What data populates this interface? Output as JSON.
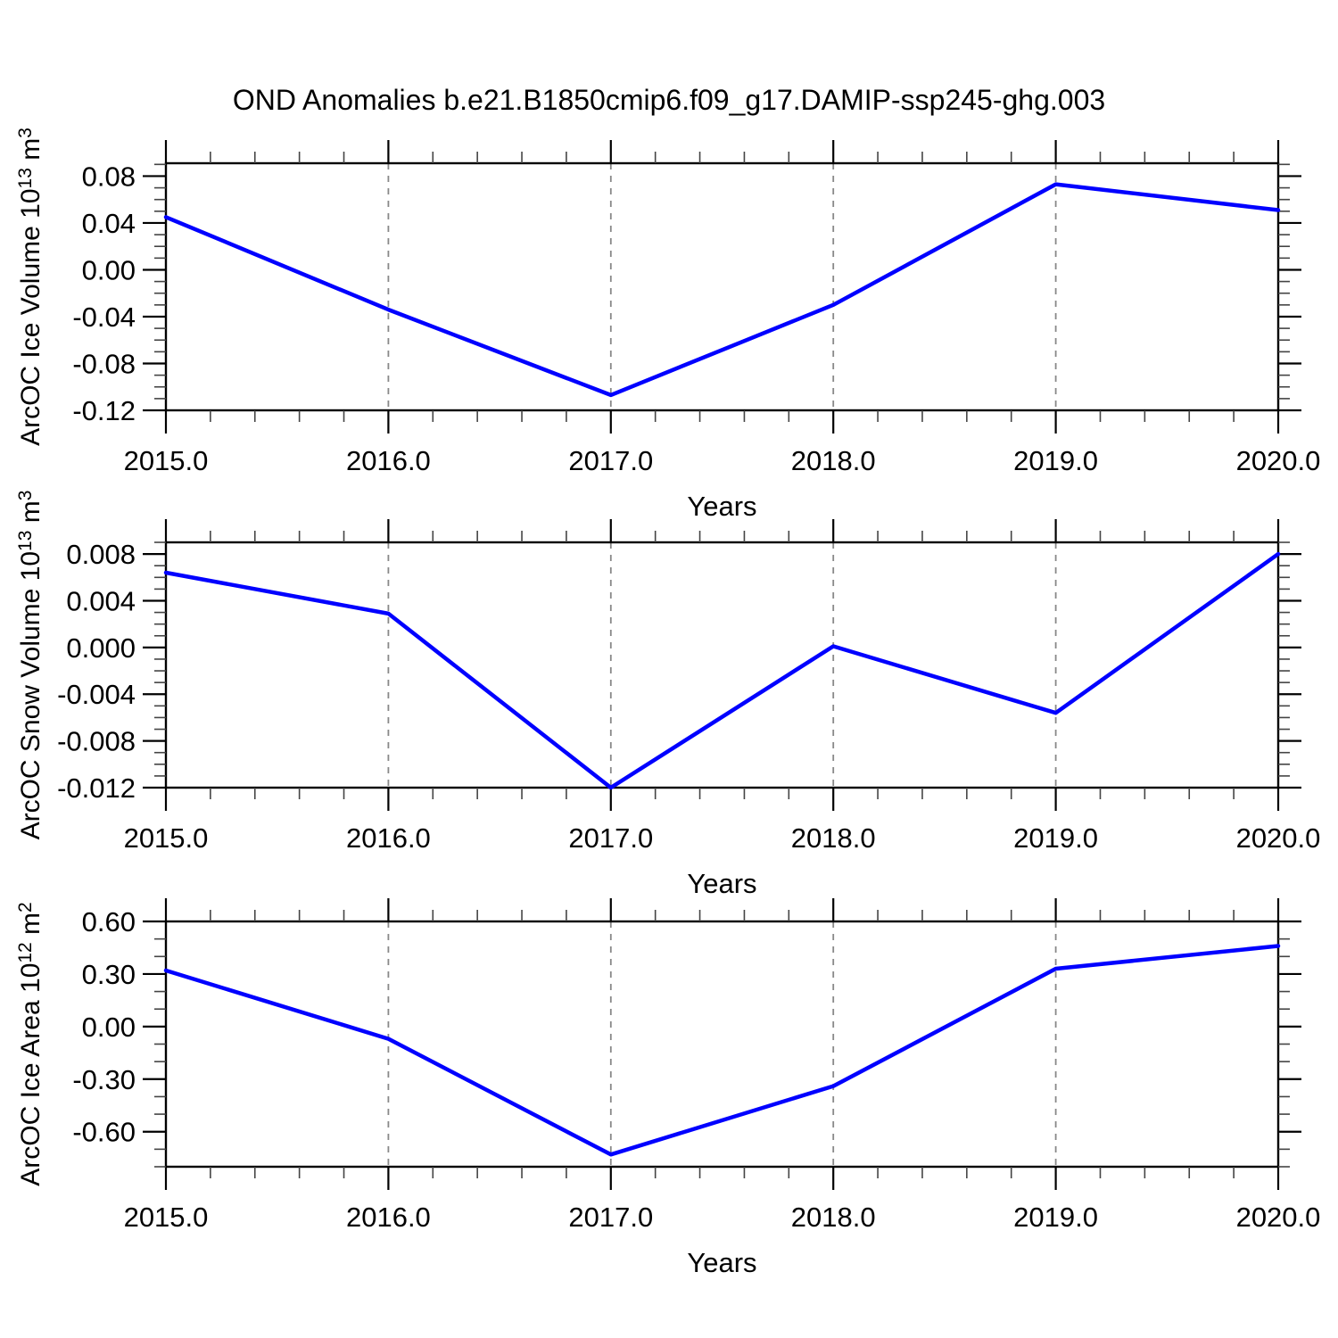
{
  "title": "OND Anomalies b.e21.B1850cmip6.f09_g17.DAMIP-ssp245-ghg.003",
  "colors": {
    "line": "#0000ff",
    "axis": "#000000",
    "minor_tick": "#444444",
    "grid": "#888888",
    "background": "#ffffff",
    "text": "#000000"
  },
  "x_axis": {
    "label": "Years",
    "range": [
      2015,
      2020
    ],
    "tick_values": [
      2015,
      2016,
      2017,
      2018,
      2019,
      2020
    ],
    "tick_labels": [
      "2015.0",
      "2016.0",
      "2017.0",
      "2018.0",
      "2019.0",
      "2020.0"
    ],
    "minor_step": 0.2,
    "grid_values": [
      2016,
      2017,
      2018,
      2019
    ]
  },
  "chart_data": [
    {
      "id": "ice-volume",
      "type": "line",
      "ylabel": "ArcOC Ice Volume 10^13 m^3",
      "ylabel_parts": [
        {
          "text": "ArcOC Ice Volume 10"
        },
        {
          "text": "13",
          "super": true
        },
        {
          "text": " m"
        },
        {
          "text": "3",
          "super": true
        }
      ],
      "x": [
        2015,
        2016,
        2017,
        2018,
        2019,
        2020
      ],
      "values": [
        0.045,
        -0.034,
        -0.107,
        -0.03,
        0.073,
        0.051
      ],
      "ylim": [
        -0.12,
        0.091
      ],
      "ytick_values": [
        0.08,
        0.04,
        0.0,
        -0.04,
        -0.08,
        -0.12
      ],
      "ytick_labels": [
        "0.08",
        "0.04",
        "0.00",
        "-0.04",
        "-0.08",
        "-0.12"
      ],
      "y_minor_step": 0.01
    },
    {
      "id": "snow-volume",
      "type": "line",
      "ylabel": "ArcOC Snow Volume 10^13 m^3",
      "ylabel_parts": [
        {
          "text": "ArcOC Snow Volume 10"
        },
        {
          "text": "13",
          "super": true
        },
        {
          "text": " m"
        },
        {
          "text": "3",
          "super": true
        }
      ],
      "x": [
        2015,
        2016,
        2017,
        2018,
        2019,
        2020
      ],
      "values": [
        0.0064,
        0.0029,
        -0.012,
        0.0001,
        -0.0056,
        0.008
      ],
      "ylim": [
        -0.012,
        0.009
      ],
      "ytick_values": [
        0.008,
        0.004,
        0.0,
        -0.004,
        -0.008,
        -0.012
      ],
      "ytick_labels": [
        "0.008",
        "0.004",
        "0.000",
        "-0.004",
        "-0.008",
        "-0.012"
      ],
      "y_minor_step": 0.001
    },
    {
      "id": "ice-area",
      "type": "line",
      "ylabel": "ArcOC Ice Area 10^12 m^2",
      "ylabel_parts": [
        {
          "text": "ArcOC Ice Area 10"
        },
        {
          "text": "12",
          "super": true
        },
        {
          "text": " m"
        },
        {
          "text": "2",
          "super": true
        }
      ],
      "x": [
        2015,
        2016,
        2017,
        2018,
        2019,
        2020
      ],
      "values": [
        0.32,
        -0.07,
        -0.73,
        -0.34,
        0.33,
        0.46
      ],
      "ylim": [
        -0.8,
        0.6
      ],
      "ytick_values": [
        0.6,
        0.3,
        0.0,
        -0.3,
        -0.6
      ],
      "ytick_labels": [
        "0.60",
        "0.30",
        "0.00",
        "-0.30",
        "-0.60"
      ],
      "y_minor_step": 0.1
    }
  ]
}
